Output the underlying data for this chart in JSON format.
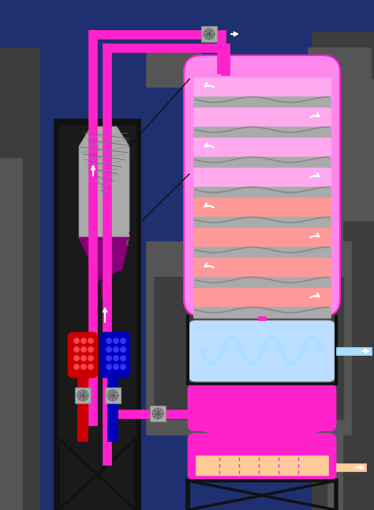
{
  "bg": "#1e3070",
  "gray1": "#3d3d3d",
  "gray2": "#555555",
  "gray3": "#6b6b6b",
  "gray4": "#888888",
  "gray5": "#aaaaaa",
  "gray6": "#cccccc",
  "black": "#111111",
  "pink_pipe": "#ff22cc",
  "pink_vessel": "#ff88ee",
  "pink_light": "#ffaaee",
  "pink_top": "#ff66dd",
  "salmon": "#ff8888",
  "peach": "#ffcc99",
  "light_blue": "#aaddff",
  "sky_blue": "#bbddff",
  "red": "#cc0000",
  "blue": "#0000bb",
  "purple": "#880077",
  "white": "#ffffff"
}
